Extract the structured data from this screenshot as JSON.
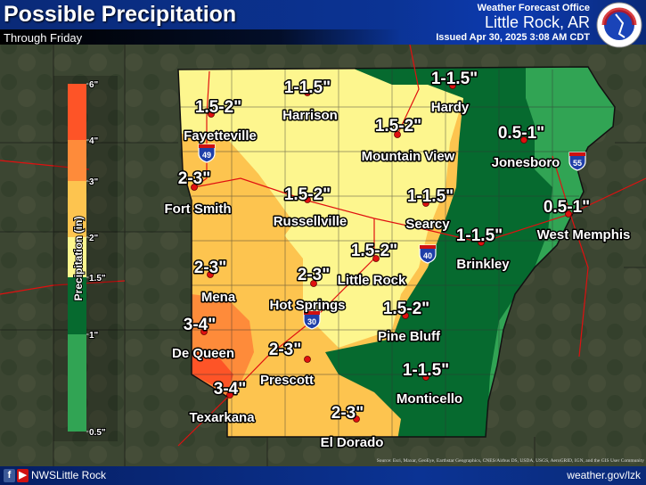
{
  "header": {
    "title": "Possible Precipitation",
    "subtitle": "Through Friday",
    "office_label": "Weather Forecast Office",
    "office_city": "Little Rock, AR",
    "issued": "Issued Apr 30, 2025 3:08 AM CDT",
    "logo_text": "NATIONAL WEATHER SERVICE"
  },
  "legend": {
    "title": "Precipitation (in)",
    "bins": [
      {
        "range": "4-6",
        "color": "#fe5427"
      },
      {
        "range": "3-4",
        "color": "#fe8b3a"
      },
      {
        "range": "2-3",
        "color": "#fdc44f"
      },
      {
        "range": "1.5-2",
        "color": "#fdf68e"
      },
      {
        "range": "1-1.5",
        "color": "#066a2f"
      },
      {
        "range": "0.5-1",
        "color": "#31a454"
      }
    ],
    "ticks": [
      "6\"",
      "4\"",
      "3\"",
      "2\"",
      "1.5\"",
      "1\"",
      " 0.5\""
    ]
  },
  "locations": [
    {
      "amount": "1-1.5\"",
      "city": "Harrison"
    },
    {
      "amount": "1-1.5\"",
      "city": "Hardy"
    },
    {
      "amount": "1.5-2\"",
      "city": "Fayetteville"
    },
    {
      "amount": "1.5-2\"",
      "city": "Mountain View"
    },
    {
      "amount": "0.5-1\"",
      "city": "Jonesboro"
    },
    {
      "amount": "2-3\"",
      "city": "Fort Smith"
    },
    {
      "amount": "1.5-2\"",
      "city": "Russellville"
    },
    {
      "amount": "1-1.5\"",
      "city": "Searcy"
    },
    {
      "amount": "0.5-1\"",
      "city": "West Memphis"
    },
    {
      "amount": "1-1.5\"",
      "city": "Brinkley"
    },
    {
      "amount": "1.5-2\"",
      "city": "Little Rock"
    },
    {
      "amount": "2-3\"",
      "city": "Hot Springs"
    },
    {
      "amount": "2-3\"",
      "city": "Mena"
    },
    {
      "amount": "1.5-2\"",
      "city": "Pine Bluff"
    },
    {
      "amount": "3-4\"",
      "city": "De Queen"
    },
    {
      "amount": "2-3\"",
      "city": "Prescott"
    },
    {
      "amount": "3-4\"",
      "city": "Texarkana"
    },
    {
      "amount": "1-1.5\"",
      "city": "Monticello"
    },
    {
      "amount": "2-3\"",
      "city": "El Dorado"
    }
  ],
  "interstates": [
    "49",
    "55",
    "40",
    "30"
  ],
  "footer": {
    "social_icons": [
      "facebook-icon",
      "youtube-icon"
    ],
    "handle": "NWSLittle Rock",
    "url": "weather.gov/lzk"
  },
  "attribution": "Source: Esri, Maxar, GeoEye, Earthstar Geographics, CNES/Airbus DS, USDA, USGS, AeroGRID, IGN, and the GIS User Community"
}
